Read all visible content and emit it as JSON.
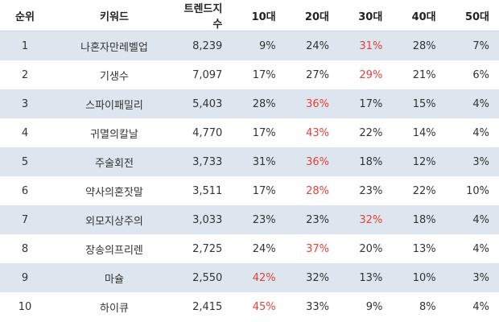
{
  "headers": [
    "순위",
    "키워드",
    "트렌드지수",
    "10대",
    "20대",
    "30대",
    "40대",
    "50대"
  ],
  "highlight_color": "#e8403a",
  "rows": [
    {
      "rank": "1",
      "keyword": "나혼자만레벨업",
      "trend": "8,239",
      "a10": "9%",
      "a20": "24%",
      "a30": "31%",
      "a40": "28%",
      "a50": "7%",
      "hl": "a30"
    },
    {
      "rank": "2",
      "keyword": "기생수",
      "trend": "7,097",
      "a10": "17%",
      "a20": "27%",
      "a30": "29%",
      "a40": "21%",
      "a50": "6%",
      "hl": "a30"
    },
    {
      "rank": "3",
      "keyword": "스파이패밀리",
      "trend": "5,403",
      "a10": "28%",
      "a20": "36%",
      "a30": "17%",
      "a40": "15%",
      "a50": "4%",
      "hl": "a20"
    },
    {
      "rank": "4",
      "keyword": "귀멸의칼날",
      "trend": "4,770",
      "a10": "17%",
      "a20": "43%",
      "a30": "22%",
      "a40": "14%",
      "a50": "4%",
      "hl": "a20"
    },
    {
      "rank": "5",
      "keyword": "주술회전",
      "trend": "3,733",
      "a10": "31%",
      "a20": "36%",
      "a30": "18%",
      "a40": "12%",
      "a50": "3%",
      "hl": "a20"
    },
    {
      "rank": "6",
      "keyword": "약사의혼잣말",
      "trend": "3,511",
      "a10": "17%",
      "a20": "28%",
      "a30": "23%",
      "a40": "22%",
      "a50": "10%",
      "hl": "a20"
    },
    {
      "rank": "7",
      "keyword": "외모지상주의",
      "trend": "3,033",
      "a10": "23%",
      "a20": "23%",
      "a30": "32%",
      "a40": "18%",
      "a50": "4%",
      "hl": "a30"
    },
    {
      "rank": "8",
      "keyword": "장송의프리렌",
      "trend": "2,725",
      "a10": "24%",
      "a20": "37%",
      "a30": "20%",
      "a40": "13%",
      "a50": "4%",
      "hl": "a20"
    },
    {
      "rank": "9",
      "keyword": "마슐",
      "trend": "2,550",
      "a10": "42%",
      "a20": "32%",
      "a30": "13%",
      "a40": "10%",
      "a50": "3%",
      "hl": "a10"
    },
    {
      "rank": "10",
      "keyword": "하이큐",
      "trend": "2,415",
      "a10": "45%",
      "a20": "33%",
      "a30": "9%",
      "a40": "8%",
      "a50": "4%",
      "hl": "a10"
    }
  ]
}
